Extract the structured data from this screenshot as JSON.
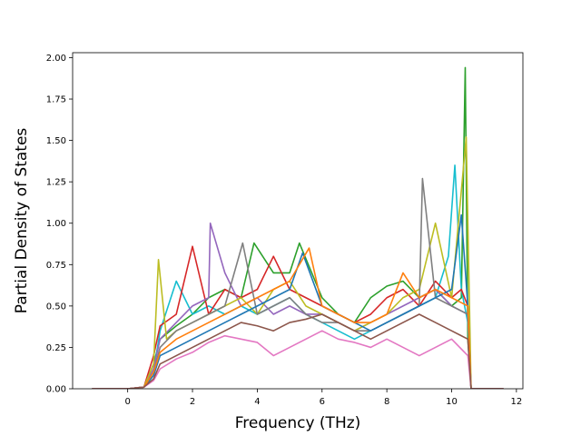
{
  "chart_data": {
    "type": "line",
    "title": "",
    "xlabel": "Frequency (THz)",
    "ylabel": "Partial Density of States",
    "xlim": [
      -1.7,
      12.2
    ],
    "ylim": [
      0.0,
      2.03
    ],
    "xticks": [
      0,
      2,
      4,
      6,
      8,
      10,
      12
    ],
    "yticks": [
      0.0,
      0.25,
      0.5,
      0.75,
      1.0,
      1.25,
      1.5,
      1.75,
      2.0
    ],
    "xtick_labels": [
      "0",
      "2",
      "4",
      "6",
      "8",
      "10",
      "12"
    ],
    "ytick_labels": [
      "0.00",
      "0.25",
      "0.50",
      "0.75",
      "1.00",
      "1.25",
      "1.50",
      "1.75",
      "2.00"
    ],
    "grid": false,
    "legend": "none",
    "x_range_of_data": [
      -1.1,
      11.6
    ],
    "notes_visible": "many overlapping per-atom PDOS curves in matplotlib default color cycle",
    "colors": [
      "#1f77b4",
      "#ff7f0e",
      "#2ca02c",
      "#d62728",
      "#9467bd",
      "#8c564b",
      "#e377c2",
      "#7f7f7f",
      "#bcbd22",
      "#17becf"
    ],
    "series": [
      {
        "color": "#2ca02c",
        "x": [
          -1.1,
          0.0,
          0.5,
          0.8,
          1.0,
          1.5,
          2.0,
          2.5,
          3.0,
          3.5,
          3.9,
          4.5,
          5.0,
          5.3,
          6.0,
          6.5,
          7.0,
          7.5,
          8.0,
          8.5,
          9.0,
          9.5,
          10.0,
          10.3,
          10.42,
          10.5,
          10.6,
          11.6
        ],
        "y": [
          0.0,
          0.0,
          0.01,
          0.15,
          0.3,
          0.38,
          0.45,
          0.55,
          0.6,
          0.55,
          0.88,
          0.7,
          0.7,
          0.88,
          0.55,
          0.45,
          0.4,
          0.55,
          0.62,
          0.65,
          0.55,
          0.6,
          0.5,
          0.55,
          1.94,
          0.3,
          0.0,
          0.0
        ]
      },
      {
        "color": "#17becf",
        "x": [
          -1.1,
          0.0,
          0.5,
          0.8,
          1.0,
          1.5,
          2.0,
          2.5,
          3.0,
          3.5,
          4.0,
          4.5,
          5.0,
          5.5,
          6.0,
          6.5,
          7.0,
          7.5,
          8.0,
          8.5,
          9.0,
          9.5,
          9.9,
          10.1,
          10.3,
          10.5,
          10.6,
          11.6
        ],
        "y": [
          0.0,
          0.0,
          0.01,
          0.1,
          0.35,
          0.65,
          0.45,
          0.5,
          0.45,
          0.5,
          0.45,
          0.5,
          0.55,
          0.45,
          0.4,
          0.35,
          0.3,
          0.35,
          0.4,
          0.45,
          0.5,
          0.55,
          0.8,
          1.35,
          0.6,
          0.4,
          0.0,
          0.0
        ]
      },
      {
        "color": "#d62728",
        "x": [
          -1.1,
          0.0,
          0.5,
          0.8,
          1.0,
          1.5,
          2.0,
          2.5,
          3.0,
          3.5,
          4.0,
          4.5,
          5.0,
          5.5,
          6.0,
          6.5,
          7.0,
          7.5,
          8.0,
          8.5,
          9.0,
          9.5,
          10.0,
          10.3,
          10.5,
          10.6,
          11.6
        ],
        "y": [
          0.0,
          0.0,
          0.01,
          0.2,
          0.38,
          0.45,
          0.86,
          0.45,
          0.6,
          0.55,
          0.6,
          0.8,
          0.6,
          0.55,
          0.5,
          0.45,
          0.4,
          0.45,
          0.55,
          0.6,
          0.5,
          0.65,
          0.55,
          0.6,
          0.5,
          0.0,
          0.0
        ]
      },
      {
        "color": "#9467bd",
        "x": [
          -1.1,
          0.0,
          0.5,
          0.8,
          1.0,
          1.5,
          2.0,
          2.5,
          2.55,
          3.0,
          3.5,
          4.0,
          4.5,
          5.0,
          5.5,
          6.0,
          6.5,
          7.0,
          7.5,
          8.0,
          8.5,
          9.0,
          9.5,
          10.0,
          10.5,
          10.6,
          11.6
        ],
        "y": [
          0.0,
          0.0,
          0.01,
          0.12,
          0.3,
          0.4,
          0.5,
          0.55,
          1.0,
          0.7,
          0.5,
          0.55,
          0.45,
          0.5,
          0.45,
          0.45,
          0.4,
          0.35,
          0.4,
          0.45,
          0.5,
          0.55,
          0.6,
          0.5,
          0.45,
          0.0,
          0.0
        ]
      },
      {
        "color": "#bcbd22",
        "x": [
          -1.1,
          0.0,
          0.5,
          0.8,
          0.95,
          1.2,
          1.5,
          2.0,
          2.5,
          3.0,
          3.5,
          4.0,
          4.5,
          5.0,
          5.5,
          6.0,
          6.5,
          7.0,
          7.5,
          8.0,
          8.5,
          9.0,
          9.5,
          10.0,
          10.45,
          10.6,
          11.6
        ],
        "y": [
          0.0,
          0.0,
          0.01,
          0.15,
          0.78,
          0.3,
          0.35,
          0.4,
          0.45,
          0.5,
          0.55,
          0.45,
          0.6,
          0.65,
          0.5,
          0.45,
          0.4,
          0.35,
          0.4,
          0.45,
          0.55,
          0.6,
          1.0,
          0.55,
          1.52,
          0.0,
          0.0
        ]
      },
      {
        "color": "#7f7f7f",
        "x": [
          -1.1,
          0.0,
          0.5,
          0.8,
          1.0,
          1.5,
          2.0,
          2.5,
          3.0,
          3.55,
          4.0,
          4.5,
          5.0,
          5.5,
          6.0,
          6.5,
          7.0,
          7.5,
          8.0,
          8.5,
          9.0,
          9.1,
          9.5,
          10.0,
          10.5,
          10.6,
          11.6
        ],
        "y": [
          0.0,
          0.0,
          0.01,
          0.1,
          0.25,
          0.35,
          0.4,
          0.45,
          0.5,
          0.88,
          0.45,
          0.5,
          0.55,
          0.45,
          0.4,
          0.4,
          0.35,
          0.35,
          0.4,
          0.45,
          0.5,
          1.27,
          0.55,
          0.5,
          0.45,
          0.0,
          0.0
        ]
      },
      {
        "color": "#1f77b4",
        "x": [
          -1.1,
          0.0,
          0.5,
          0.8,
          1.0,
          1.5,
          2.0,
          2.5,
          3.0,
          3.5,
          4.0,
          4.5,
          5.0,
          5.4,
          6.0,
          6.5,
          7.0,
          7.5,
          8.0,
          8.5,
          9.0,
          9.5,
          10.0,
          10.3,
          10.5,
          10.6,
          11.6
        ],
        "y": [
          0.0,
          0.0,
          0.01,
          0.08,
          0.2,
          0.25,
          0.3,
          0.35,
          0.4,
          0.45,
          0.5,
          0.55,
          0.6,
          0.82,
          0.5,
          0.45,
          0.4,
          0.35,
          0.4,
          0.45,
          0.5,
          0.55,
          0.6,
          1.05,
          0.5,
          0.0,
          0.0
        ]
      },
      {
        "color": "#ff7f0e",
        "x": [
          -1.1,
          0.0,
          0.5,
          0.8,
          1.0,
          1.5,
          2.0,
          2.5,
          3.0,
          3.5,
          4.0,
          4.5,
          5.0,
          5.6,
          6.0,
          6.5,
          7.0,
          7.5,
          8.0,
          8.5,
          9.0,
          9.5,
          10.0,
          10.5,
          10.6,
          11.6
        ],
        "y": [
          0.0,
          0.0,
          0.01,
          0.1,
          0.22,
          0.3,
          0.35,
          0.4,
          0.45,
          0.5,
          0.55,
          0.6,
          0.65,
          0.85,
          0.5,
          0.45,
          0.4,
          0.4,
          0.45,
          0.7,
          0.55,
          0.6,
          0.55,
          0.5,
          0.0,
          0.0
        ]
      },
      {
        "color": "#e377c2",
        "x": [
          -1.1,
          0.0,
          0.5,
          0.8,
          1.0,
          1.5,
          2.0,
          2.5,
          3.0,
          3.5,
          4.0,
          4.5,
          5.0,
          5.5,
          6.0,
          6.5,
          7.0,
          7.5,
          8.0,
          8.5,
          9.0,
          9.5,
          10.0,
          10.5,
          10.6,
          11.6
        ],
        "y": [
          0.0,
          0.0,
          0.01,
          0.05,
          0.12,
          0.18,
          0.22,
          0.28,
          0.32,
          0.3,
          0.28,
          0.2,
          0.25,
          0.3,
          0.35,
          0.3,
          0.28,
          0.25,
          0.3,
          0.25,
          0.2,
          0.25,
          0.3,
          0.2,
          0.0,
          0.0
        ]
      },
      {
        "color": "#8c564b",
        "x": [
          -1.1,
          0.0,
          0.5,
          0.8,
          1.0,
          1.5,
          2.0,
          2.5,
          3.0,
          3.5,
          4.0,
          4.5,
          5.0,
          5.5,
          6.0,
          6.5,
          7.0,
          7.5,
          8.0,
          8.5,
          9.0,
          9.5,
          10.0,
          10.5,
          10.6,
          11.6
        ],
        "y": [
          0.0,
          0.0,
          0.01,
          0.06,
          0.15,
          0.2,
          0.25,
          0.3,
          0.35,
          0.4,
          0.38,
          0.35,
          0.4,
          0.42,
          0.45,
          0.4,
          0.35,
          0.3,
          0.35,
          0.4,
          0.45,
          0.4,
          0.35,
          0.3,
          0.0,
          0.0
        ]
      }
    ]
  }
}
